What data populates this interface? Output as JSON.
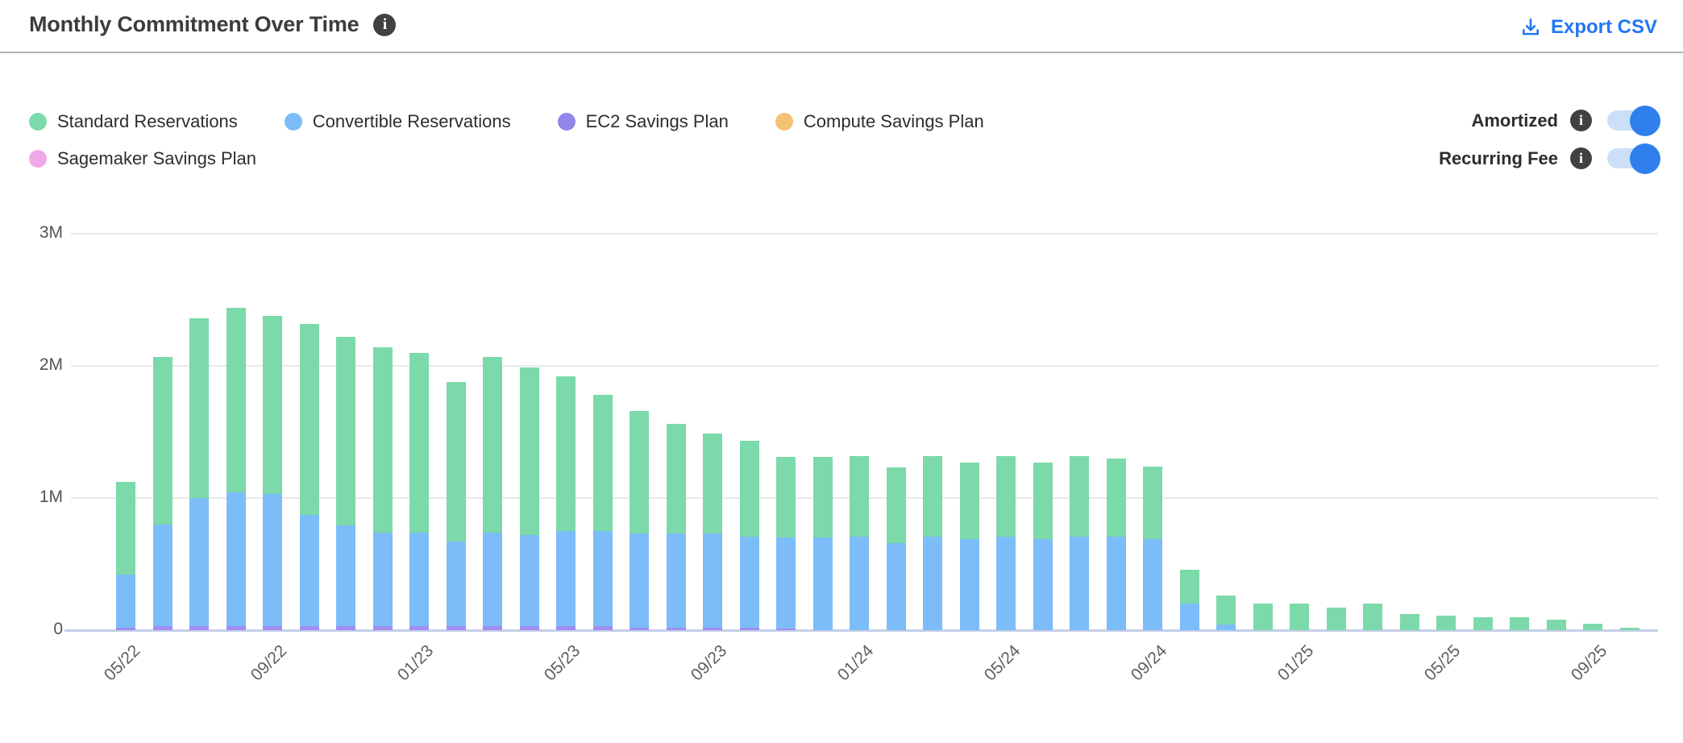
{
  "header": {
    "title": "Monthly Commitment Over Time",
    "export_label": "Export CSV"
  },
  "icons": {
    "info_glyph": "i",
    "download_icon": "download-tray-arrow"
  },
  "legend": {
    "items": [
      {
        "label": "Standard Reservations",
        "color": "#7cd9a9"
      },
      {
        "label": "Convertible Reservations",
        "color": "#7cbcf8"
      },
      {
        "label": "EC2 Savings Plan",
        "color": "#9286ea"
      },
      {
        "label": "Compute Savings Plan",
        "color": "#f5c176"
      },
      {
        "label": "Sagemaker Savings Plan",
        "color": "#f0a9e8"
      }
    ]
  },
  "toggles": [
    {
      "label": "Amortized",
      "state": "on"
    },
    {
      "label": "Recurring Fee",
      "state": "on"
    }
  ],
  "colors": {
    "accent_blue": "#2276f3",
    "toggle_on": "#2f80ed",
    "toggle_track": "#cbdff8",
    "gridline": "#e9e9e9",
    "axis_baseline": "#c5cfe9",
    "title_text": "#3c3c3c"
  },
  "chart_data": {
    "type": "bar",
    "stacked": true,
    "title": "Monthly Commitment Over Time",
    "xlabel": "",
    "ylabel": "",
    "unit": "millions",
    "ylim": [
      0,
      3
    ],
    "grid": true,
    "legend_position": "top-left",
    "y_ticks": [
      {
        "label": "0",
        "value": 0
      },
      {
        "label": "1M",
        "value": 1
      },
      {
        "label": "2M",
        "value": 2
      },
      {
        "label": "3M",
        "value": 3
      }
    ],
    "x_tick_every": 4,
    "x_tick_labels": [
      "05/22",
      "09/22",
      "01/23",
      "05/23",
      "09/23",
      "01/24",
      "05/24",
      "09/24",
      "01/25",
      "05/25",
      "09/25"
    ],
    "categories": [
      "05/22",
      "06/22",
      "07/22",
      "08/22",
      "09/22",
      "10/22",
      "11/22",
      "12/22",
      "01/23",
      "02/23",
      "03/23",
      "04/23",
      "05/23",
      "06/23",
      "07/23",
      "08/23",
      "09/23",
      "10/23",
      "11/23",
      "12/23",
      "01/24",
      "02/24",
      "03/24",
      "04/24",
      "05/24",
      "06/24",
      "07/24",
      "08/24",
      "09/24",
      "10/24",
      "11/24",
      "12/24",
      "01/25",
      "02/25",
      "03/25",
      "04/25",
      "05/25",
      "06/25",
      "07/25",
      "08/25",
      "09/25",
      "10/25"
    ],
    "series": [
      {
        "name": "EC2 Savings Plan",
        "color": "#a18df2",
        "values": [
          0.02,
          0.03,
          0.03,
          0.03,
          0.03,
          0.03,
          0.03,
          0.03,
          0.03,
          0.03,
          0.03,
          0.03,
          0.03,
          0.03,
          0.02,
          0.02,
          0.02,
          0.02,
          0.01,
          0,
          0,
          0,
          0,
          0,
          0,
          0,
          0,
          0,
          0,
          0,
          0,
          0,
          0,
          0,
          0,
          0,
          0,
          0,
          0,
          0,
          0,
          0
        ]
      },
      {
        "name": "Convertible Reservations",
        "color": "#7cbcf8",
        "values": [
          0.4,
          0.77,
          0.97,
          1.01,
          1.0,
          0.84,
          0.76,
          0.71,
          0.71,
          0.64,
          0.71,
          0.69,
          0.72,
          0.72,
          0.71,
          0.71,
          0.71,
          0.69,
          0.69,
          0.7,
          0.71,
          0.66,
          0.71,
          0.69,
          0.71,
          0.69,
          0.71,
          0.71,
          0.69,
          0.2,
          0.04,
          0,
          0,
          0,
          0,
          0,
          0,
          0,
          0,
          0,
          0,
          0
        ]
      },
      {
        "name": "Standard Reservations",
        "color": "#7cd9a9",
        "values": [
          0.7,
          1.27,
          1.36,
          1.4,
          1.35,
          1.45,
          1.43,
          1.4,
          1.36,
          1.21,
          1.33,
          1.27,
          1.17,
          1.03,
          0.93,
          0.83,
          0.76,
          0.72,
          0.61,
          0.61,
          0.61,
          0.57,
          0.61,
          0.58,
          0.61,
          0.58,
          0.61,
          0.59,
          0.55,
          0.26,
          0.22,
          0.2,
          0.2,
          0.17,
          0.2,
          0.12,
          0.11,
          0.1,
          0.1,
          0.08,
          0.05,
          0.02
        ]
      },
      {
        "name": "Compute Savings Plan",
        "color": "#f5c176",
        "values": [
          0,
          0,
          0,
          0,
          0,
          0,
          0,
          0,
          0,
          0,
          0,
          0,
          0,
          0,
          0,
          0,
          0,
          0,
          0,
          0,
          0,
          0,
          0,
          0,
          0,
          0,
          0,
          0,
          0,
          0,
          0,
          0,
          0,
          0,
          0,
          0,
          0,
          0,
          0,
          0,
          0,
          0
        ]
      },
      {
        "name": "Sagemaker Savings Plan",
        "color": "#f0a9e8",
        "values": [
          0,
          0,
          0,
          0,
          0,
          0,
          0,
          0,
          0,
          0,
          0,
          0,
          0,
          0,
          0,
          0,
          0,
          0,
          0,
          0,
          0,
          0,
          0,
          0,
          0,
          0,
          0,
          0,
          0,
          0,
          0,
          0,
          0,
          0,
          0,
          0,
          0,
          0,
          0,
          0,
          0,
          0
        ]
      }
    ]
  }
}
